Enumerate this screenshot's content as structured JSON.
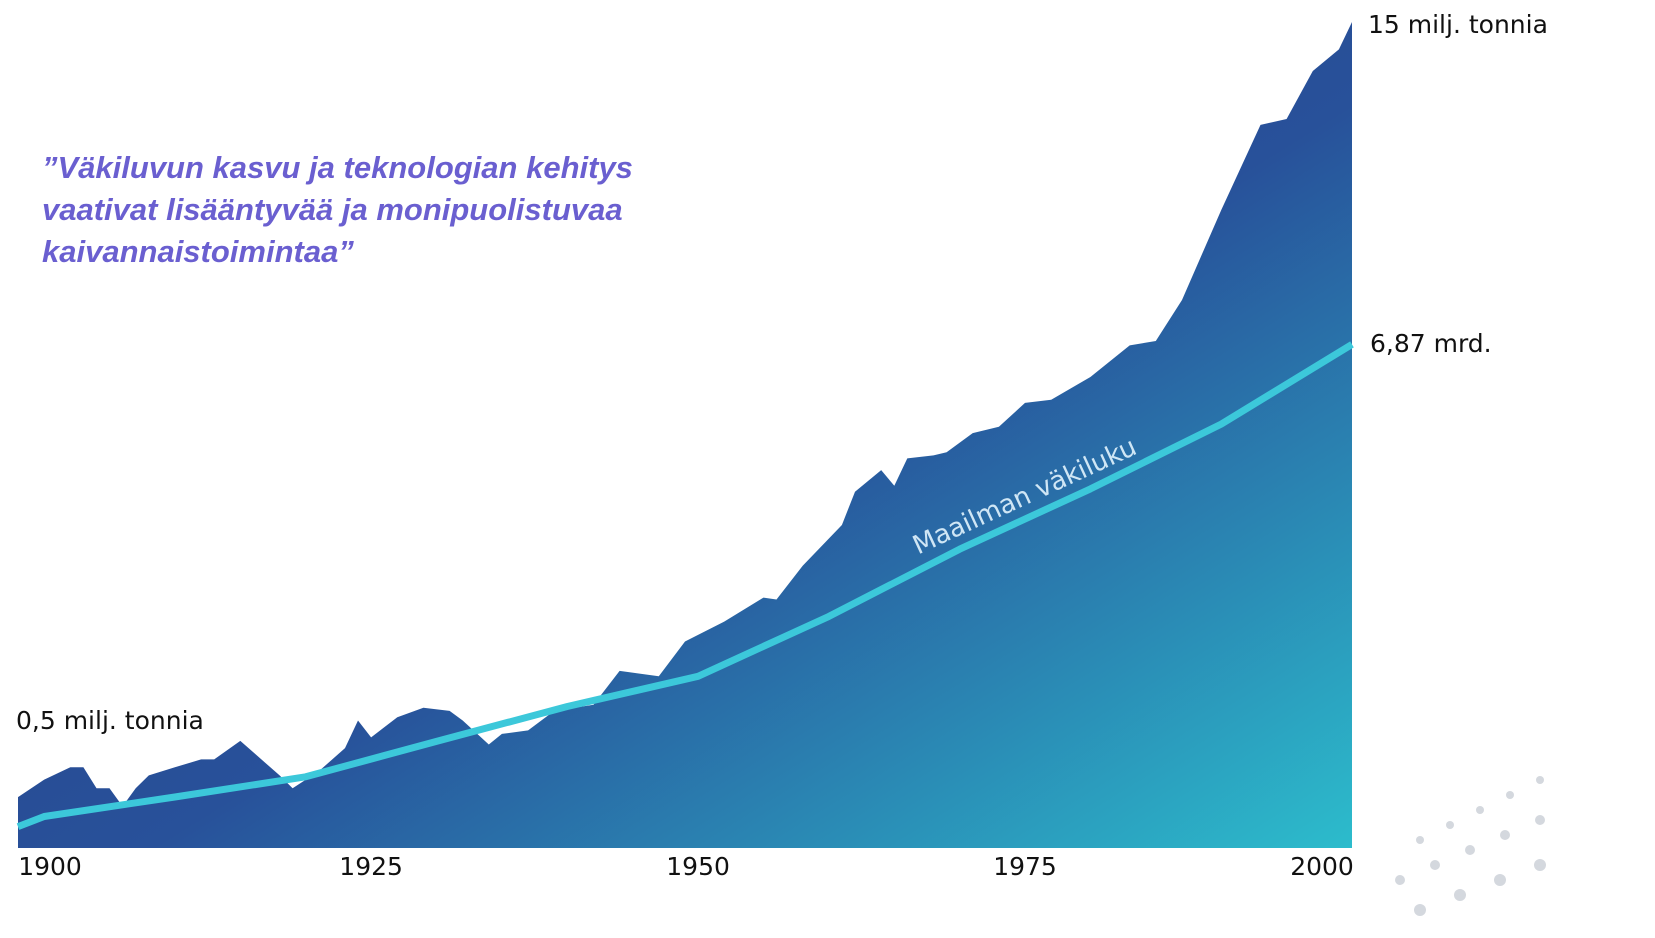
{
  "chart_data": {
    "type": "area",
    "quote": [
      "”Väkiluvun kasvu ja teknologian kehitys",
      "vaativat lisääntyvää ja monipuolistuvaa",
      "kaivannaistoimintaa”"
    ],
    "xlim": [
      1898,
      2000
    ],
    "xticks": [
      1900,
      1925,
      1950,
      1975,
      2000
    ],
    "ylim": [
      0.4,
      15
    ],
    "y2lim": [
      1.5,
      18.2
    ],
    "log_scale": true,
    "series": [
      {
        "color": "#2a4b8d",
        "x": [
          1898,
          1900,
          1902,
          1903,
          1904,
          1905,
          1906,
          1907,
          1908,
          1910,
          1912,
          1913,
          1915,
          1918,
          1919,
          1921,
          1923,
          1924,
          1925,
          1927,
          1929,
          1931,
          1932,
          1934,
          1935,
          1937,
          1939,
          1942,
          1944,
          1947,
          1949,
          1952,
          1955,
          1956,
          1958,
          1961,
          1962,
          1964,
          1965,
          1966,
          1968,
          1969,
          1971,
          1973,
          1975,
          1977,
          1980,
          1983,
          1985,
          1987,
          1990,
          1993,
          1995,
          1997,
          1999,
          2000
        ],
        "values": [
          0.5,
          0.54,
          0.57,
          0.57,
          0.52,
          0.52,
          0.48,
          0.52,
          0.55,
          0.57,
          0.59,
          0.59,
          0.64,
          0.55,
          0.52,
          0.56,
          0.62,
          0.7,
          0.65,
          0.71,
          0.74,
          0.73,
          0.7,
          0.63,
          0.66,
          0.67,
          0.73,
          0.75,
          0.87,
          0.85,
          0.99,
          1.08,
          1.2,
          1.19,
          1.38,
          1.65,
          1.91,
          2.1,
          1.96,
          2.21,
          2.24,
          2.27,
          2.47,
          2.54,
          2.82,
          2.86,
          3.16,
          3.63,
          3.7,
          4.43,
          6.57,
          9.55,
          9.8,
          12.1,
          13.3,
          15
        ]
      },
      {
        "name": "Maailman väkiluku",
        "color": "#3cc8da",
        "axis": "y2",
        "x": [
          1898,
          1900,
          1910,
          1920,
          1930,
          1940,
          1950,
          1960,
          1970,
          1980,
          1990,
          2000
        ],
        "values": [
          1.6,
          1.65,
          1.75,
          1.86,
          2.07,
          2.3,
          2.52,
          3.02,
          3.7,
          4.44,
          5.4,
          6.87
        ]
      }
    ],
    "annotations": [
      "0,5 milj. tonnia",
      "15 milj. tonnia",
      "6,87 mrd."
    ]
  }
}
